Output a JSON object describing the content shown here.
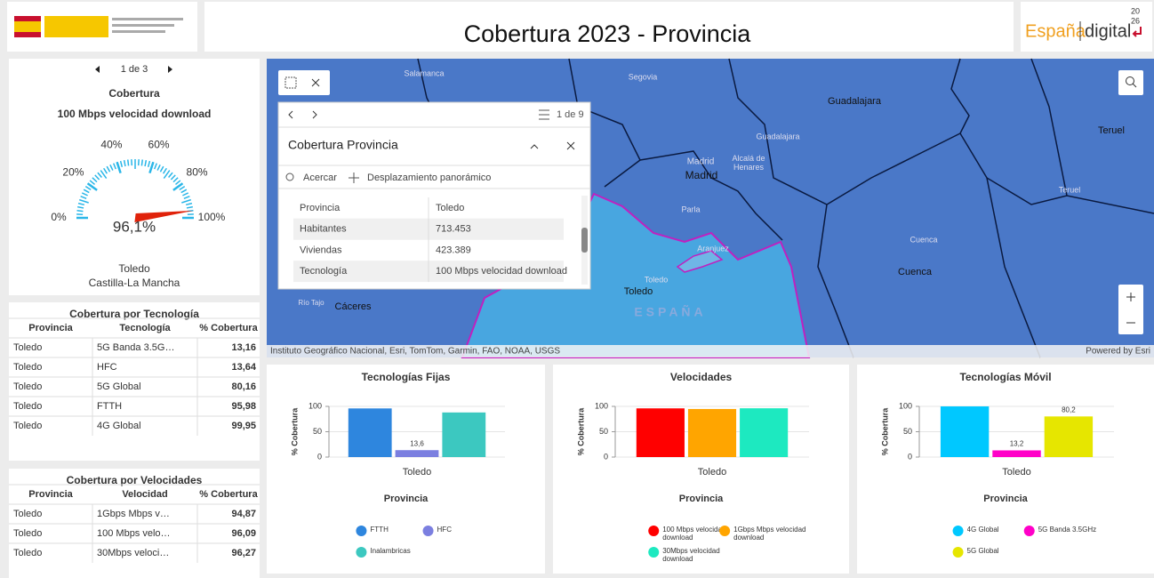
{
  "header": {
    "title": "Cobertura 2023 - Provincia",
    "brand": "España",
    "brand2": "digital",
    "year_top": "20",
    "year_bottom": "26"
  },
  "gauge": {
    "pager": "1 de 3",
    "title": "Cobertura",
    "subtitle": "100 Mbps velocidad download",
    "ticks": [
      {
        "value": 0,
        "label": "0%"
      },
      {
        "value": 20,
        "label": "20%"
      },
      {
        "value": 40,
        "label": "40%"
      },
      {
        "value": 60,
        "label": "60%"
      },
      {
        "value": 80,
        "label": "80%"
      },
      {
        "value": 100,
        "label": "100%"
      }
    ],
    "value": 96.1,
    "value_label": "96,1%",
    "place": "Toledo",
    "region": "Castilla-La Mancha"
  },
  "tech_table": {
    "title": "Cobertura por Tecnología",
    "columns": [
      "Provincia",
      "Tecnología",
      "% Cobertura"
    ],
    "rows": [
      [
        "Toledo",
        "5G Banda 3.5G…",
        "13,16"
      ],
      [
        "Toledo",
        "HFC",
        "13,64"
      ],
      [
        "Toledo",
        "5G Global",
        "80,16"
      ],
      [
        "Toledo",
        "FTTH",
        "95,98"
      ],
      [
        "Toledo",
        "4G Global",
        "99,95"
      ]
    ]
  },
  "speed_table": {
    "title": "Cobertura por Velocidades",
    "columns": [
      "Provincia",
      "Velocidad",
      "% Cobertura"
    ],
    "rows": [
      [
        "Toledo",
        "1Gbps Mbps v…",
        "94,87"
      ],
      [
        "Toledo",
        "100 Mbps velo…",
        "96,09"
      ],
      [
        "Toledo",
        "30Mbps veloci…",
        "96,27"
      ]
    ]
  },
  "map": {
    "labels": [
      "Salamanca",
      "Segovia",
      "Guadalajara",
      "Guadalajara",
      "Teruel",
      "Teruel",
      "Madrid",
      "Madrid",
      "Alcalá de Henares",
      "Parla",
      "Aranjuez",
      "Toledo",
      "Toledo",
      "Cuenca",
      "Cuenca",
      "Cáceres",
      "ESPAÑA",
      "Río Tajo"
    ],
    "attribution": "Instituto Geográfico Nacional, Esri, TomTom, Garmin, FAO, NOAA, USGS",
    "powered": "Powered by Esri"
  },
  "popup": {
    "pager": "1 de 9",
    "title": "Cobertura Provincia",
    "actions": [
      "Acercar",
      "Desplazamiento panorámico"
    ],
    "rows": [
      [
        "Provincia",
        "Toledo"
      ],
      [
        "Habitantes",
        "713.453"
      ],
      [
        "Viviendas",
        "423.389"
      ],
      [
        "Tecnología",
        "100 Mbps velocidad download"
      ]
    ]
  },
  "charts": [
    {
      "type": "bar",
      "title": "Tecnologías Fijas",
      "y_label": "% Cobertura",
      "x_label": "Provincia",
      "categories": [
        "Toledo"
      ],
      "ylim": [
        0,
        100
      ],
      "yticks": [
        0,
        50,
        100
      ],
      "series": [
        {
          "name": "FTTH",
          "color": "#2e86de",
          "values": [
            95.98
          ]
        },
        {
          "name": "HFC",
          "color": "#7b7fe0",
          "values": [
            13.64
          ],
          "value_labels": [
            "13,6"
          ]
        },
        {
          "name": "Inalambricas",
          "color": "#3cc8c0",
          "values": [
            88
          ]
        }
      ]
    },
    {
      "type": "bar",
      "title": "Velocidades",
      "y_label": "% Cobertura",
      "x_label": "Provincia",
      "categories": [
        "Toledo"
      ],
      "ylim": [
        0,
        100
      ],
      "yticks": [
        0,
        50,
        100
      ],
      "series": [
        {
          "name": "100 Mbps velocidad download",
          "color": "#ff0000",
          "values": [
            96.09
          ]
        },
        {
          "name": "1Gbps Mbps velocidad download",
          "color": "#ffa500",
          "values": [
            94.87
          ]
        },
        {
          "name": "30Mbps velocidad download",
          "color": "#1de9c0",
          "values": [
            96.27
          ]
        }
      ]
    },
    {
      "type": "bar",
      "title": "Tecnologías Móvil",
      "y_label": "% Cobertura",
      "x_label": "Provincia",
      "categories": [
        "Toledo"
      ],
      "ylim": [
        0,
        100
      ],
      "yticks": [
        0,
        50,
        100
      ],
      "series": [
        {
          "name": "4G Global",
          "color": "#00c8ff",
          "values": [
            99.95
          ]
        },
        {
          "name": "5G Banda 3.5GHz",
          "color": "#ff00c8",
          "values": [
            13.16
          ],
          "value_labels": [
            "13,2"
          ]
        },
        {
          "name": "5G Global",
          "color": "#e6e600",
          "values": [
            80.16
          ],
          "value_labels": [
            "80,2"
          ]
        }
      ]
    }
  ]
}
